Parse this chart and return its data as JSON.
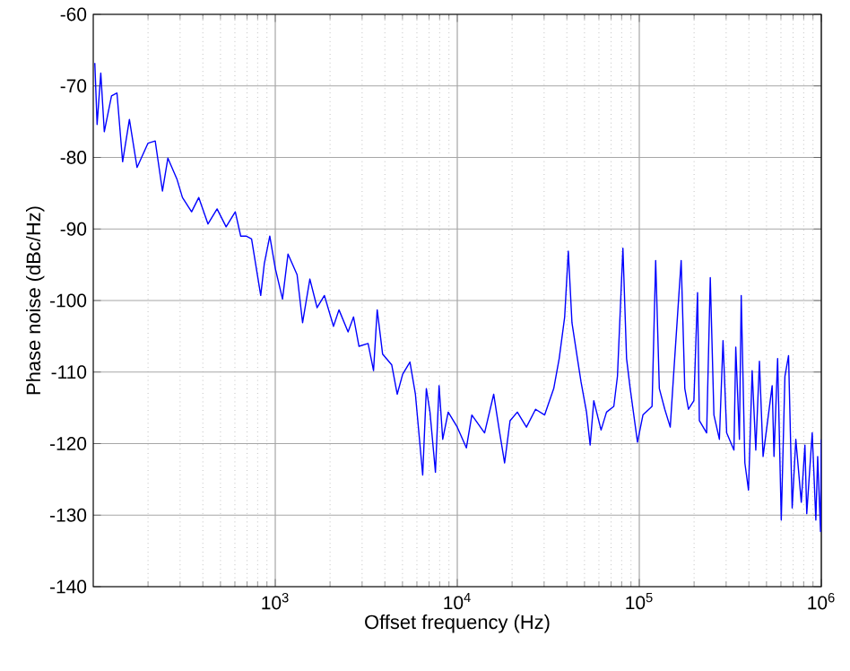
{
  "chart_data": {
    "type": "line",
    "xlabel": "Offset frequency (Hz)",
    "ylabel": "Phase noise (dBc/Hz)",
    "log": "x",
    "grid": true,
    "color": "#0000ff",
    "xlim": [
      100,
      1000000
    ],
    "ylim": [
      -140,
      -60
    ],
    "xticks": [
      {
        "value": 1000,
        "label": "10$^{3}$"
      },
      {
        "value": 10000,
        "label": "10$^{4}$"
      },
      {
        "value": 100000,
        "label": "10$^{5}$"
      },
      {
        "value": 1000000,
        "label": "10$^{6}$"
      }
    ],
    "yticks": [
      -140,
      -130,
      -120,
      -110,
      -100,
      -90,
      -80,
      -70,
      -60
    ],
    "x": [
      102,
      105,
      110,
      115,
      126,
      135,
      145,
      158,
      174,
      200,
      219,
      240,
      257,
      288,
      309,
      347,
      380,
      427,
      479,
      537,
      603,
      646,
      692,
      741,
      832,
      871,
      933,
      1000,
      1096,
      1175,
      1318,
      1413,
      1549,
      1698,
      1862,
      2089,
      2239,
      2512,
      2692,
      2884,
      3236,
      3467,
      3631,
      3890,
      4365,
      4677,
      5012,
      5495,
      5888,
      6457,
      6761,
      7079,
      7586,
      7943,
      8318,
      8913,
      10000,
      11220,
      12023,
      14125,
      15849,
      16982,
      18197,
      19498,
      21380,
      23988,
      26915,
      30200,
      33884,
      36308,
      38905,
      40738,
      42658,
      45709,
      47863,
      51286,
      53703,
      56234,
      61660,
      66069,
      72444,
      75858,
      81283,
      85114,
      89125,
      97724,
      104713,
      117490,
      123027,
      128825,
      138038,
      147911,
      154882,
      169824,
      177828,
      186209,
      199526,
      208930,
      213796,
      234423,
      245471,
      257040,
      275423,
      288403,
      301995,
      331131,
      338844,
      354813,
      363078,
      380189,
      398107,
      416869,
      436516,
      457088,
      478630,
      537032,
      549541,
      575440,
      602560,
      630957,
      660693,
      691831,
      724436,
      776247,
      812831,
      831764,
      891251,
      933254,
      954993,
      990000,
      1000000
    ],
    "values": [
      -66.8,
      -75.4,
      -68.2,
      -76.4,
      -71.4,
      -71,
      -80.6,
      -74.7,
      -81.4,
      -78,
      -77.7,
      -84.7,
      -80.1,
      -83,
      -85.6,
      -87.6,
      -85.6,
      -89.3,
      -87.2,
      -89.7,
      -87.6,
      -91,
      -91,
      -91.4,
      -99.3,
      -94.8,
      -91,
      -95.5,
      -99.8,
      -93.5,
      -96.4,
      -103.1,
      -97,
      -101,
      -99.3,
      -103.6,
      -101.3,
      -104.4,
      -102.3,
      -106.4,
      -106,
      -109.8,
      -101.3,
      -107.5,
      -109,
      -113.1,
      -110.3,
      -108.6,
      -113.1,
      -124.4,
      -112.3,
      -115.6,
      -124,
      -111.9,
      -119.4,
      -115.6,
      -117.7,
      -120.6,
      -116,
      -118.5,
      -113.1,
      -118,
      -122.7,
      -116.8,
      -115.6,
      -117.7,
      -115.2,
      -116,
      -112.3,
      -108.1,
      -102.3,
      -93.1,
      -103.1,
      -108.1,
      -111.4,
      -115.6,
      -120.2,
      -114,
      -118.1,
      -115.6,
      -114.8,
      -110.6,
      -92.7,
      -108.1,
      -112.3,
      -119.8,
      -116,
      -114.8,
      -94.4,
      -112.3,
      -115.2,
      -117.7,
      -109.8,
      -94.4,
      -112.3,
      -115.2,
      -114,
      -98.9,
      -116.8,
      -118.5,
      -96.8,
      -116,
      -119.4,
      -105.6,
      -118.5,
      -120.9,
      -106.5,
      -119.4,
      -99.3,
      -122.7,
      -126.5,
      -109.8,
      -120.9,
      -108.5,
      -121.8,
      -111.9,
      -121.8,
      -108.1,
      -130.7,
      -110.6,
      -107.7,
      -129,
      -119.4,
      -128.2,
      -120.2,
      -129.8,
      -118.5,
      -130.7,
      -121.8,
      -132.3,
      -119.4
    ]
  }
}
